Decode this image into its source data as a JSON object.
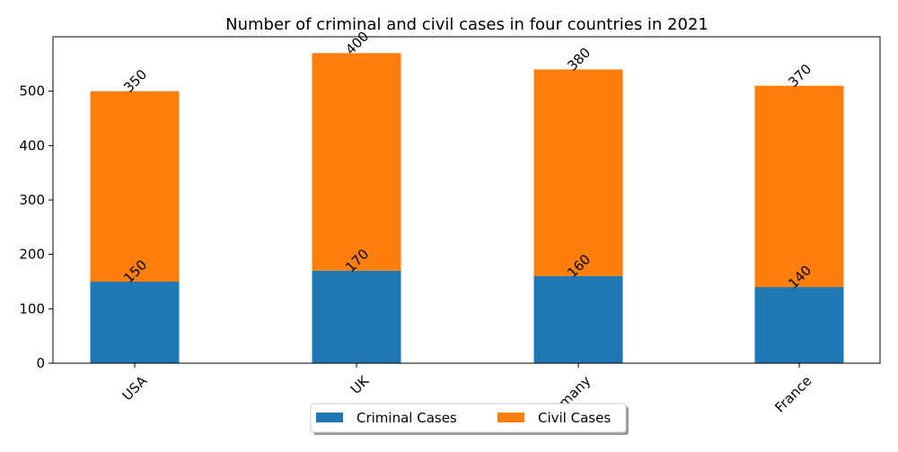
{
  "chart_data": {
    "type": "bar",
    "stacked": true,
    "title": "Number of criminal and civil cases in four countries in 2021",
    "categories": [
      "USA",
      "UK",
      "Germany",
      "France"
    ],
    "series": [
      {
        "name": "Criminal Cases",
        "values": [
          150,
          170,
          160,
          140
        ],
        "color": "#1f77b4"
      },
      {
        "name": "Civil Cases",
        "values": [
          350,
          400,
          380,
          370
        ],
        "color": "#ff7f0e"
      }
    ],
    "xlabel": "",
    "ylabel": "",
    "ylim": [
      0,
      600
    ],
    "yticks": [
      0,
      100,
      200,
      300,
      400,
      500
    ],
    "grid": false,
    "legend": "bottom-center",
    "tick_label_rotation": 45,
    "data_label_rotation": 45
  }
}
